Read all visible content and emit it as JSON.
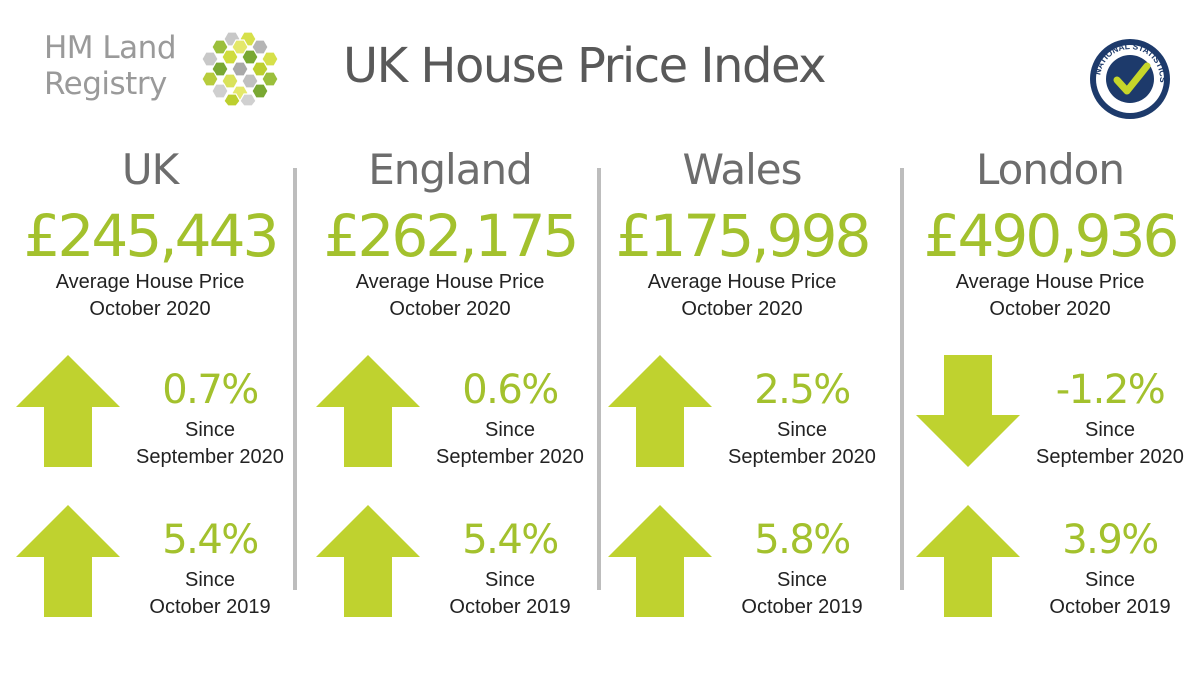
{
  "header": {
    "logo_line1": "HM Land",
    "logo_line2": "Registry",
    "title": "UK House Price Index",
    "badge_text": "NATIONAL STATISTICS"
  },
  "colors": {
    "accent_green": "#a3c12d",
    "arrow_green": "#bfd22f",
    "grey_text": "#6d6d6d",
    "divider": "#bdbdbd"
  },
  "regions": [
    {
      "name": "UK",
      "price": "£245,443",
      "caption_line1": "Average House Price",
      "caption_line2": "October 2020",
      "monthly": {
        "pct": "0.7%",
        "direction": "up",
        "label_line1": "Since",
        "label_line2": "September 2020"
      },
      "annual": {
        "pct": "5.4%",
        "direction": "up",
        "label_line1": "Since",
        "label_line2": "October 2019"
      }
    },
    {
      "name": "England",
      "price": "£262,175",
      "caption_line1": "Average House Price",
      "caption_line2": "October 2020",
      "monthly": {
        "pct": "0.6%",
        "direction": "up",
        "label_line1": "Since",
        "label_line2": "September 2020"
      },
      "annual": {
        "pct": "5.4%",
        "direction": "up",
        "label_line1": "Since",
        "label_line2": "October 2019"
      }
    },
    {
      "name": "Wales",
      "price": "£175,998",
      "caption_line1": "Average House Price",
      "caption_line2": "October 2020",
      "monthly": {
        "pct": "2.5%",
        "direction": "up",
        "label_line1": "Since",
        "label_line2": "September 2020"
      },
      "annual": {
        "pct": "5.8%",
        "direction": "up",
        "label_line1": "Since",
        "label_line2": "October 2019"
      }
    },
    {
      "name": "London",
      "price": "£490,936",
      "caption_line1": "Average House Price",
      "caption_line2": "October 2020",
      "monthly": {
        "pct": "-1.2%",
        "direction": "down",
        "label_line1": "Since",
        "label_line2": "September 2020"
      },
      "annual": {
        "pct": "3.9%",
        "direction": "up",
        "label_line1": "Since",
        "label_line2": "October 2019"
      }
    }
  ]
}
